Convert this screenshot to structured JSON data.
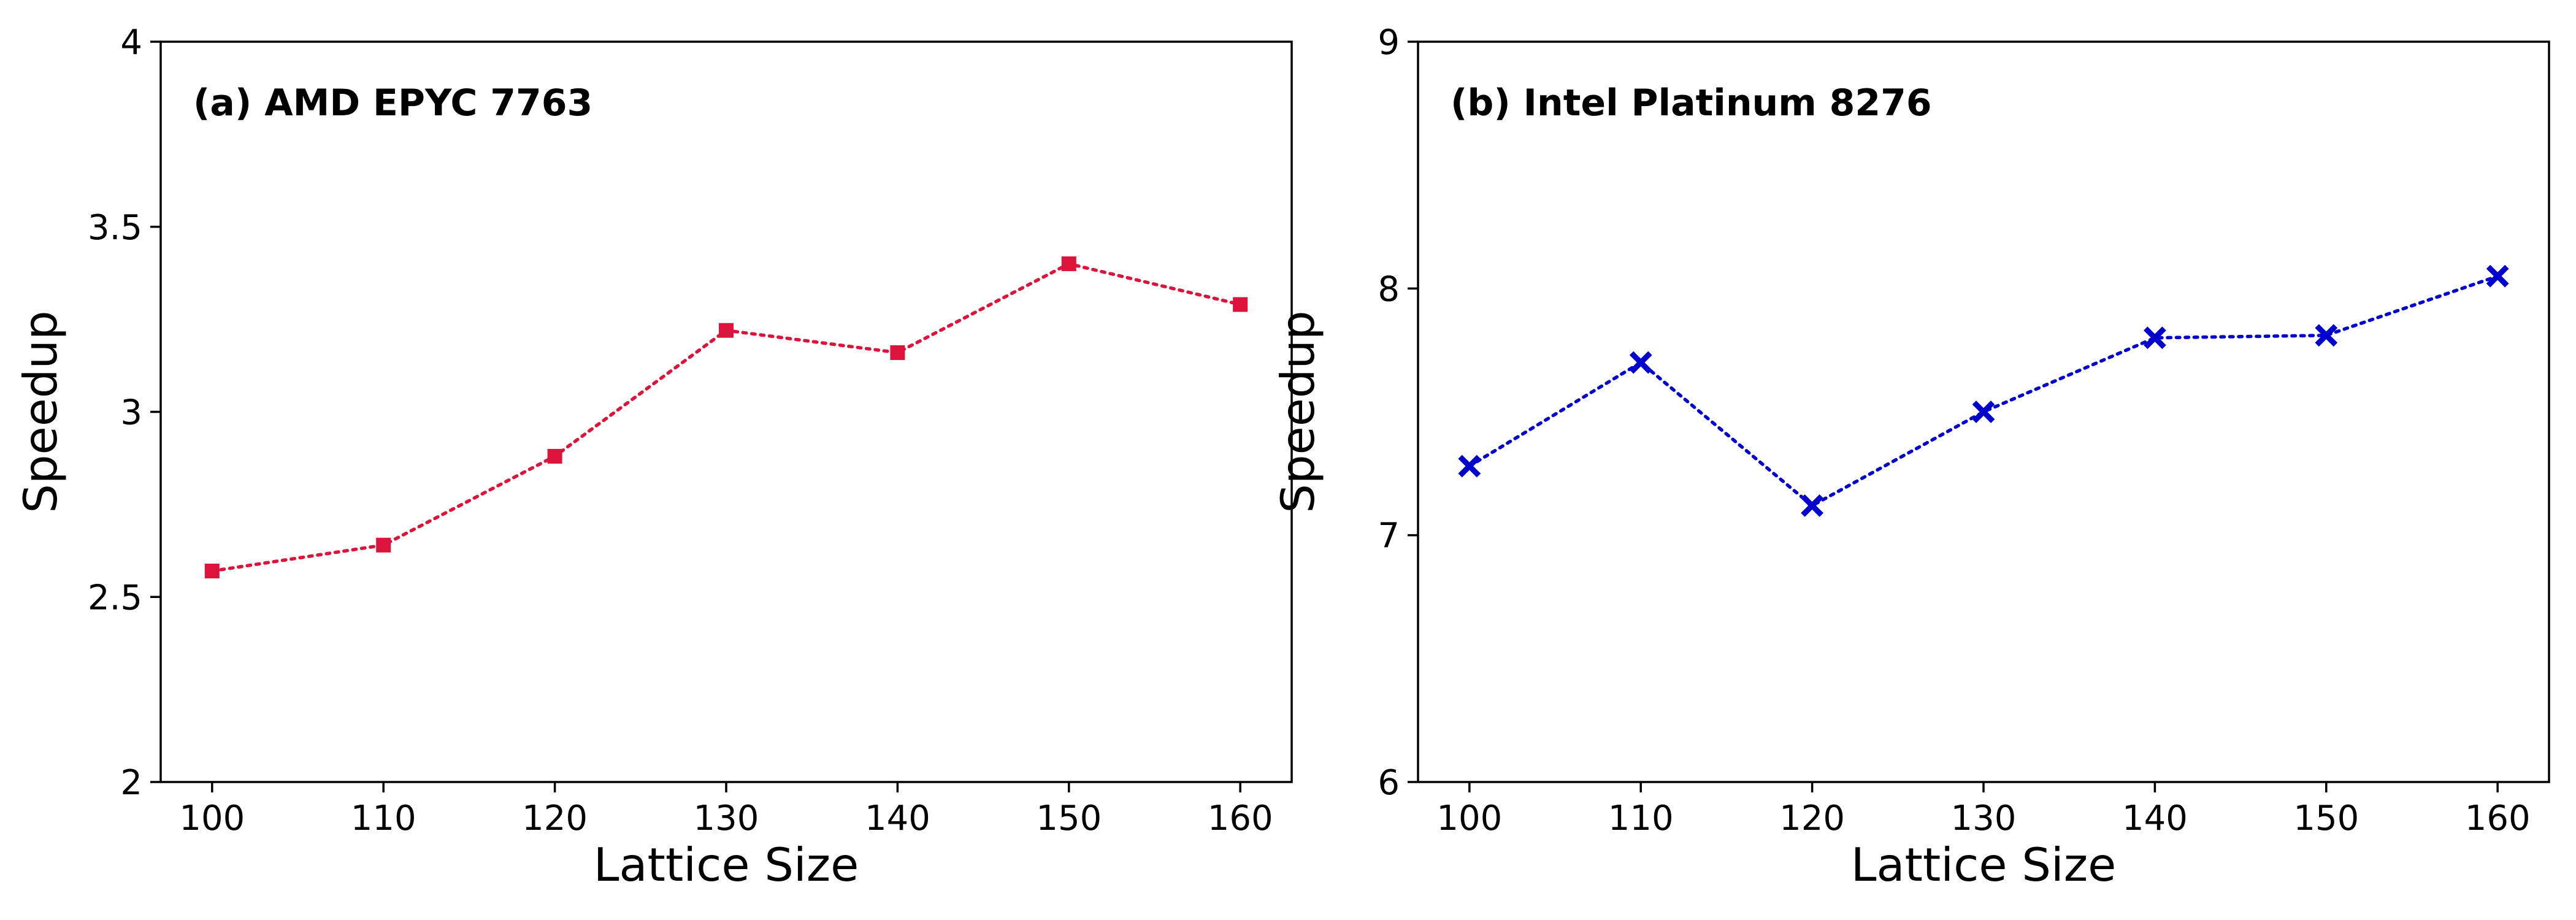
{
  "chart_data": [
    {
      "type": "line",
      "title": "(a) AMD EPYC 7763",
      "xlabel": "Lattice Size",
      "ylabel": "Speedup",
      "xlim": [
        97,
        163
      ],
      "ylim": [
        2,
        4
      ],
      "xticks": [
        100,
        110,
        120,
        130,
        140,
        150,
        160
      ],
      "yticks": [
        2,
        2.5,
        3,
        3.5,
        4
      ],
      "ytick_labels": [
        "2",
        "2.5",
        "3",
        "3.5",
        "4"
      ],
      "grid": false,
      "line_style": "dotted",
      "marker": "square",
      "color": "#DC143C",
      "series": [
        {
          "x": [
            100,
            110,
            120,
            130,
            140,
            150,
            160
          ],
          "values": [
            2.57,
            2.64,
            2.88,
            3.22,
            3.16,
            3.4,
            3.29
          ]
        }
      ]
    },
    {
      "type": "line",
      "title": "(b) Intel Platinum 8276",
      "xlabel": "Lattice Size",
      "ylabel": "Speedup",
      "xlim": [
        97,
        163
      ],
      "ylim": [
        6,
        9
      ],
      "xticks": [
        100,
        110,
        120,
        130,
        140,
        150,
        160
      ],
      "yticks": [
        6,
        7,
        8,
        9
      ],
      "ytick_labels": [
        "6",
        "7",
        "8",
        "9"
      ],
      "grid": false,
      "line_style": "dotted",
      "marker": "x",
      "color": "#0000CD",
      "series": [
        {
          "x": [
            100,
            110,
            120,
            130,
            140,
            150,
            160
          ],
          "values": [
            7.28,
            7.7,
            7.12,
            7.5,
            7.8,
            7.81,
            8.05
          ]
        }
      ]
    }
  ]
}
